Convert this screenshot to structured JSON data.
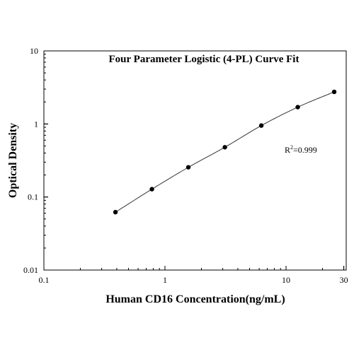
{
  "chart_data": {
    "type": "scatter",
    "title": "Four Parameter Logistic (4-PL) Curve Fit",
    "xlabel": "Human CD16 Concentration(ng/mL)",
    "ylabel": "Optical Density",
    "x_scale": "log",
    "y_scale": "log",
    "xlim": [
      0.1,
      30
    ],
    "ylim": [
      0.01,
      10
    ],
    "x_ticks": [
      {
        "value": 0.1,
        "label": "0.1"
      },
      {
        "value": 1,
        "label": "1"
      },
      {
        "value": 10,
        "label": "10"
      },
      {
        "value": 30,
        "label": "30"
      }
    ],
    "y_ticks": [
      {
        "value": 0.01,
        "label": "0.01"
      },
      {
        "value": 0.1,
        "label": "0.1"
      },
      {
        "value": 1,
        "label": "1"
      },
      {
        "value": 10,
        "label": "10"
      }
    ],
    "grid": false,
    "points": {
      "x": [
        0.39,
        0.78,
        1.56,
        3.125,
        6.25,
        12.5,
        25
      ],
      "y": [
        0.062,
        0.128,
        0.255,
        0.48,
        0.95,
        1.7,
        2.75
      ]
    },
    "fit_curve": {
      "model": "4PL",
      "x_range": [
        0.39,
        25
      ]
    },
    "annotation": {
      "prefix": "R",
      "superscript": "2",
      "suffix": "=0.999"
    },
    "colors": {
      "points": "#000000",
      "curve": "#333333",
      "axes": "#000000"
    }
  }
}
